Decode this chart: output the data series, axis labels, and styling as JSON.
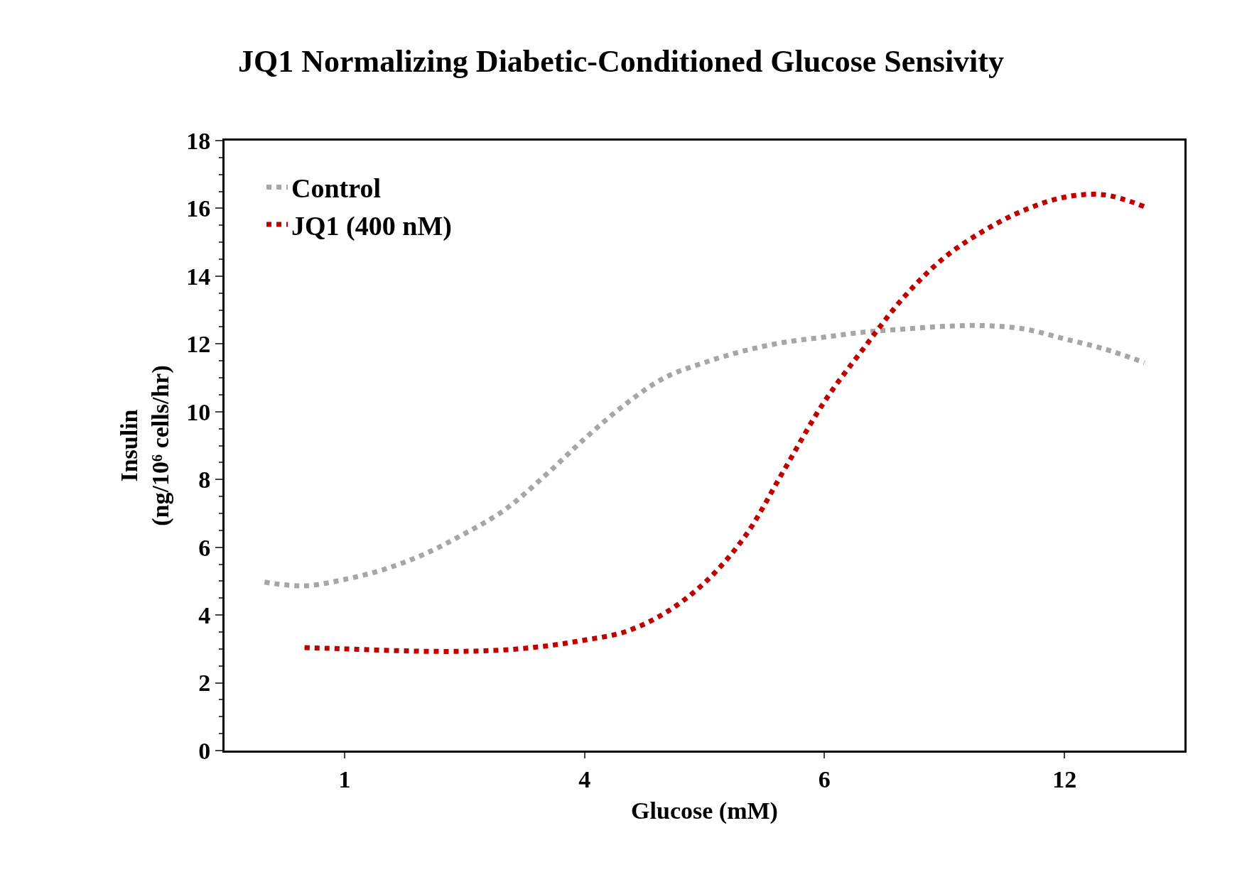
{
  "chart_data": {
    "type": "line",
    "title": "JQ1 Normalizing Diabetic-Conditioned Glucose Sensivity",
    "xlabel": "Glucose (mM)",
    "ylabel": "Insulin\n(ng/10⁶ cells/hr)",
    "categories": [
      null,
      null,
      "1",
      null,
      null,
      null,
      null,
      null,
      "4",
      null,
      null,
      null,
      null,
      null,
      "6",
      null,
      null,
      null,
      null,
      null,
      "12",
      null,
      null
    ],
    "ylim": [
      0,
      18
    ],
    "yticks": [
      0,
      2,
      4,
      6,
      8,
      10,
      12,
      14,
      16,
      18
    ],
    "legend": "top left",
    "line_style": "dotted",
    "marker": "none",
    "series": [
      {
        "name": "Control",
        "color": "#a6a6a6",
        "values": [
          4.97,
          4.86,
          5.05,
          5.35,
          5.8,
          6.4,
          7.1,
          8.1,
          9.2,
          10.2,
          11.0,
          11.45,
          11.8,
          12.05,
          12.2,
          12.35,
          12.44,
          12.52,
          12.54,
          12.44,
          12.15,
          11.85,
          11.45
        ]
      },
      {
        "name": "JQ1 (400 nM)",
        "color": "#c00000",
        "values": [
          null,
          3.04,
          3.0,
          2.96,
          2.93,
          2.93,
          2.97,
          3.08,
          3.26,
          3.5,
          4.05,
          4.95,
          6.3,
          8.3,
          10.3,
          11.9,
          13.4,
          14.55,
          15.35,
          15.95,
          16.33,
          16.4,
          16.05
        ]
      }
    ]
  }
}
